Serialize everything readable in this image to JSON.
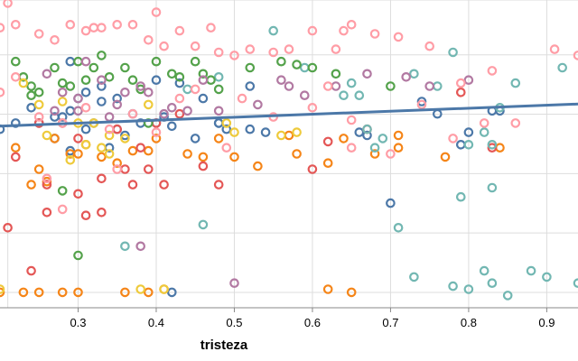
{
  "chart_data": {
    "type": "scatter",
    "title": "",
    "xlabel": "tristeza",
    "ylabel": "",
    "x_ticks": [
      "0.3",
      "0.4",
      "0.5",
      "0.6",
      "0.7",
      "0.8",
      "0.9"
    ],
    "xlim": [
      0.2,
      0.94
    ],
    "ylim": [
      0,
      1
    ],
    "grid": true,
    "legend": "none",
    "trend_line": {
      "x": [
        0.2,
        0.94
      ],
      "y": [
        0.59,
        0.662
      ]
    },
    "series": [
      {
        "color": "#4c78a8",
        "points": [
          [
            0.2,
            0.58
          ],
          [
            0.22,
            0.6
          ],
          [
            0.25,
            0.6
          ],
          [
            0.27,
            0.62
          ],
          [
            0.28,
            0.62
          ],
          [
            0.29,
            0.64
          ],
          [
            0.3,
            0.68
          ],
          [
            0.31,
            0.7
          ],
          [
            0.32,
            0.6
          ],
          [
            0.33,
            0.67
          ],
          [
            0.35,
            0.68
          ],
          [
            0.37,
            0.63
          ],
          [
            0.38,
            0.6
          ],
          [
            0.4,
            0.6
          ],
          [
            0.41,
            0.62
          ],
          [
            0.42,
            0.59
          ],
          [
            0.24,
            0.65
          ],
          [
            0.27,
            0.55
          ],
          [
            0.29,
            0.51
          ],
          [
            0.31,
            0.58
          ],
          [
            0.34,
            0.52
          ],
          [
            0.36,
            0.56
          ],
          [
            0.45,
            0.55
          ],
          [
            0.46,
            0.68
          ],
          [
            0.48,
            0.6
          ],
          [
            0.49,
            0.58
          ],
          [
            0.52,
            0.58
          ],
          [
            0.54,
            0.57
          ],
          [
            0.66,
            0.57
          ],
          [
            0.67,
            0.56
          ],
          [
            0.7,
            0.34
          ],
          [
            0.74,
            0.67
          ],
          [
            0.76,
            0.63
          ],
          [
            0.79,
            0.53
          ],
          [
            0.8,
            0.57
          ],
          [
            0.83,
            0.64
          ],
          [
            0.84,
            0.64
          ],
          [
            0.29,
            0.8
          ],
          [
            0.33,
            0.72
          ],
          [
            0.4,
            0.74
          ],
          [
            0.43,
            0.73
          ],
          [
            0.52,
            0.72
          ],
          [
            0.48,
            0.6
          ],
          [
            0.35,
            0.58
          ],
          [
            0.42,
            0.05
          ]
        ]
      },
      {
        "color": "#f58518",
        "points": [
          [
            0.2,
            0.05
          ],
          [
            0.23,
            0.05
          ],
          [
            0.25,
            0.05
          ],
          [
            0.28,
            0.05
          ],
          [
            0.3,
            0.05
          ],
          [
            0.36,
            0.05
          ],
          [
            0.39,
            0.05
          ],
          [
            0.41,
            0.06
          ],
          [
            0.62,
            0.06
          ],
          [
            0.65,
            0.05
          ],
          [
            0.22,
            0.52
          ],
          [
            0.25,
            0.45
          ],
          [
            0.27,
            0.55
          ],
          [
            0.29,
            0.5
          ],
          [
            0.31,
            0.53
          ],
          [
            0.33,
            0.49
          ],
          [
            0.35,
            0.47
          ],
          [
            0.37,
            0.51
          ],
          [
            0.4,
            0.55
          ],
          [
            0.44,
            0.5
          ],
          [
            0.46,
            0.49
          ],
          [
            0.48,
            0.55
          ],
          [
            0.5,
            0.49
          ],
          [
            0.53,
            0.46
          ],
          [
            0.57,
            0.56
          ],
          [
            0.58,
            0.5
          ],
          [
            0.62,
            0.47
          ],
          [
            0.64,
            0.55
          ],
          [
            0.68,
            0.5
          ],
          [
            0.71,
            0.56
          ],
          [
            0.71,
            0.52
          ],
          [
            0.77,
            0.49
          ],
          [
            0.84,
            0.52
          ],
          [
            0.26,
            0.41
          ],
          [
            0.39,
            0.51
          ],
          [
            0.24,
            0.4
          ],
          [
            0.3,
            0.5
          ]
        ]
      },
      {
        "color": "#e45756",
        "points": [
          [
            0.21,
            0.26
          ],
          [
            0.24,
            0.12
          ],
          [
            0.26,
            0.4
          ],
          [
            0.28,
            0.6
          ],
          [
            0.3,
            0.37
          ],
          [
            0.31,
            0.3
          ],
          [
            0.33,
            0.42
          ],
          [
            0.35,
            0.58
          ],
          [
            0.37,
            0.4
          ],
          [
            0.39,
            0.45
          ],
          [
            0.4,
            0.6
          ],
          [
            0.41,
            0.4
          ],
          [
            0.43,
            0.63
          ],
          [
            0.46,
            0.46
          ],
          [
            0.48,
            0.4
          ],
          [
            0.38,
            0.52
          ],
          [
            0.33,
            0.31
          ],
          [
            0.26,
            0.31
          ],
          [
            0.62,
            0.54
          ],
          [
            0.67,
            0.58
          ],
          [
            0.79,
            0.7
          ],
          [
            0.83,
            0.52
          ],
          [
            0.6,
            0.45
          ],
          [
            0.36,
            0.45
          ],
          [
            0.3,
            0.55
          ],
          [
            0.25,
            0.6
          ],
          [
            0.22,
            0.49
          ]
        ]
      },
      {
        "color": "#72b7b2",
        "points": [
          [
            0.44,
            0.71
          ],
          [
            0.48,
            0.75
          ],
          [
            0.55,
            0.9
          ],
          [
            0.59,
            0.78
          ],
          [
            0.64,
            0.69
          ],
          [
            0.65,
            0.73
          ],
          [
            0.66,
            0.69
          ],
          [
            0.67,
            0.58
          ],
          [
            0.68,
            0.52
          ],
          [
            0.69,
            0.55
          ],
          [
            0.73,
            0.76
          ],
          [
            0.76,
            0.72
          ],
          [
            0.78,
            0.83
          ],
          [
            0.8,
            0.53
          ],
          [
            0.83,
            0.53
          ],
          [
            0.83,
            0.39
          ],
          [
            0.84,
            0.65
          ],
          [
            0.86,
            0.73
          ],
          [
            0.88,
            0.12
          ],
          [
            0.9,
            0.1
          ],
          [
            0.92,
            0.78
          ],
          [
            0.94,
            0.08
          ],
          [
            0.85,
            0.04
          ],
          [
            0.83,
            0.08
          ],
          [
            0.82,
            0.12
          ],
          [
            0.8,
            0.06
          ],
          [
            0.78,
            0.07
          ],
          [
            0.73,
            0.1
          ],
          [
            0.71,
            0.26
          ],
          [
            0.46,
            0.27
          ],
          [
            0.36,
            0.2
          ],
          [
            0.79,
            0.36
          ],
          [
            0.82,
            0.57
          ]
        ]
      },
      {
        "color": "#54a24b",
        "points": [
          [
            0.22,
            0.8
          ],
          [
            0.23,
            0.75
          ],
          [
            0.24,
            0.72
          ],
          [
            0.25,
            0.7
          ],
          [
            0.27,
            0.78
          ],
          [
            0.28,
            0.73
          ],
          [
            0.29,
            0.72
          ],
          [
            0.3,
            0.8
          ],
          [
            0.31,
            0.74
          ],
          [
            0.32,
            0.78
          ],
          [
            0.33,
            0.82
          ],
          [
            0.34,
            0.75
          ],
          [
            0.36,
            0.78
          ],
          [
            0.37,
            0.74
          ],
          [
            0.38,
            0.71
          ],
          [
            0.4,
            0.8
          ],
          [
            0.42,
            0.76
          ],
          [
            0.43,
            0.75
          ],
          [
            0.45,
            0.8
          ],
          [
            0.46,
            0.76
          ],
          [
            0.47,
            0.74
          ],
          [
            0.48,
            0.71
          ],
          [
            0.52,
            0.78
          ],
          [
            0.56,
            0.8
          ],
          [
            0.58,
            0.79
          ],
          [
            0.6,
            0.78
          ],
          [
            0.63,
            0.76
          ],
          [
            0.7,
            0.72
          ],
          [
            0.28,
            0.38
          ],
          [
            0.3,
            0.17
          ],
          [
            0.39,
            0.6
          ],
          [
            0.24,
            0.69
          ]
        ]
      },
      {
        "color": "#eeca3b",
        "points": [
          [
            0.2,
            0.06
          ],
          [
            0.38,
            0.06
          ],
          [
            0.41,
            0.06
          ],
          [
            0.26,
            0.56
          ],
          [
            0.3,
            0.6
          ],
          [
            0.32,
            0.6
          ],
          [
            0.34,
            0.56
          ],
          [
            0.36,
            0.55
          ],
          [
            0.34,
            0.5
          ],
          [
            0.31,
            0.53
          ],
          [
            0.23,
            0.73
          ],
          [
            0.25,
            0.66
          ],
          [
            0.28,
            0.67
          ],
          [
            0.39,
            0.66
          ],
          [
            0.49,
            0.6
          ],
          [
            0.5,
            0.57
          ],
          [
            0.56,
            0.56
          ],
          [
            0.58,
            0.57
          ],
          [
            0.29,
            0.48
          ],
          [
            0.33,
            0.52
          ]
        ]
      },
      {
        "color": "#b279a2",
        "points": [
          [
            0.26,
            0.76
          ],
          [
            0.28,
            0.7
          ],
          [
            0.3,
            0.68
          ],
          [
            0.31,
            0.8
          ],
          [
            0.33,
            0.74
          ],
          [
            0.34,
            0.62
          ],
          [
            0.35,
            0.66
          ],
          [
            0.36,
            0.7
          ],
          [
            0.38,
            0.72
          ],
          [
            0.39,
            0.7
          ],
          [
            0.41,
            0.63
          ],
          [
            0.42,
            0.65
          ],
          [
            0.44,
            0.64
          ],
          [
            0.46,
            0.74
          ],
          [
            0.53,
            0.66
          ],
          [
            0.56,
            0.74
          ],
          [
            0.57,
            0.72
          ],
          [
            0.59,
            0.69
          ],
          [
            0.63,
            0.72
          ],
          [
            0.67,
            0.76
          ],
          [
            0.72,
            0.75
          ],
          [
            0.75,
            0.72
          ],
          [
            0.8,
            0.74
          ],
          [
            0.5,
            0.08
          ],
          [
            0.38,
            0.2
          ],
          [
            0.3,
            0.64
          ],
          [
            0.27,
            0.64
          ],
          [
            0.48,
            0.64
          ]
        ]
      },
      {
        "color": "#ff9da6",
        "points": [
          [
            0.21,
            0.99
          ],
          [
            0.2,
            0.91
          ],
          [
            0.22,
            0.92
          ],
          [
            0.25,
            0.89
          ],
          [
            0.27,
            0.87
          ],
          [
            0.29,
            0.92
          ],
          [
            0.31,
            0.9
          ],
          [
            0.32,
            0.91
          ],
          [
            0.33,
            0.91
          ],
          [
            0.35,
            0.92
          ],
          [
            0.37,
            0.92
          ],
          [
            0.39,
            0.87
          ],
          [
            0.41,
            0.85
          ],
          [
            0.4,
            0.96
          ],
          [
            0.43,
            0.9
          ],
          [
            0.45,
            0.85
          ],
          [
            0.47,
            0.91
          ],
          [
            0.48,
            0.83
          ],
          [
            0.5,
            0.82
          ],
          [
            0.52,
            0.84
          ],
          [
            0.55,
            0.83
          ],
          [
            0.57,
            0.84
          ],
          [
            0.6,
            0.9
          ],
          [
            0.63,
            0.84
          ],
          [
            0.64,
            0.9
          ],
          [
            0.65,
            0.92
          ],
          [
            0.68,
            0.89
          ],
          [
            0.71,
            0.88
          ],
          [
            0.75,
            0.85
          ],
          [
            0.79,
            0.73
          ],
          [
            0.83,
            0.77
          ],
          [
            0.91,
            0.84
          ],
          [
            0.94,
            0.82
          ],
          [
            0.2,
            0.7
          ],
          [
            0.22,
            0.75
          ],
          [
            0.25,
            0.62
          ],
          [
            0.28,
            0.6
          ],
          [
            0.31,
            0.65
          ],
          [
            0.34,
            0.58
          ],
          [
            0.37,
            0.63
          ],
          [
            0.4,
            0.57
          ],
          [
            0.43,
            0.68
          ],
          [
            0.45,
            0.71
          ],
          [
            0.51,
            0.68
          ],
          [
            0.55,
            0.62
          ],
          [
            0.6,
            0.65
          ],
          [
            0.62,
            0.72
          ],
          [
            0.65,
            0.52
          ],
          [
            0.7,
            0.5
          ],
          [
            0.74,
            0.66
          ],
          [
            0.78,
            0.55
          ],
          [
            0.82,
            0.6
          ],
          [
            0.86,
            0.6
          ],
          [
            0.35,
            0.45
          ],
          [
            0.28,
            0.32
          ],
          [
            0.26,
            0.42
          ],
          [
            0.65,
            0.61
          ],
          [
            0.49,
            0.52
          ]
        ]
      }
    ]
  }
}
